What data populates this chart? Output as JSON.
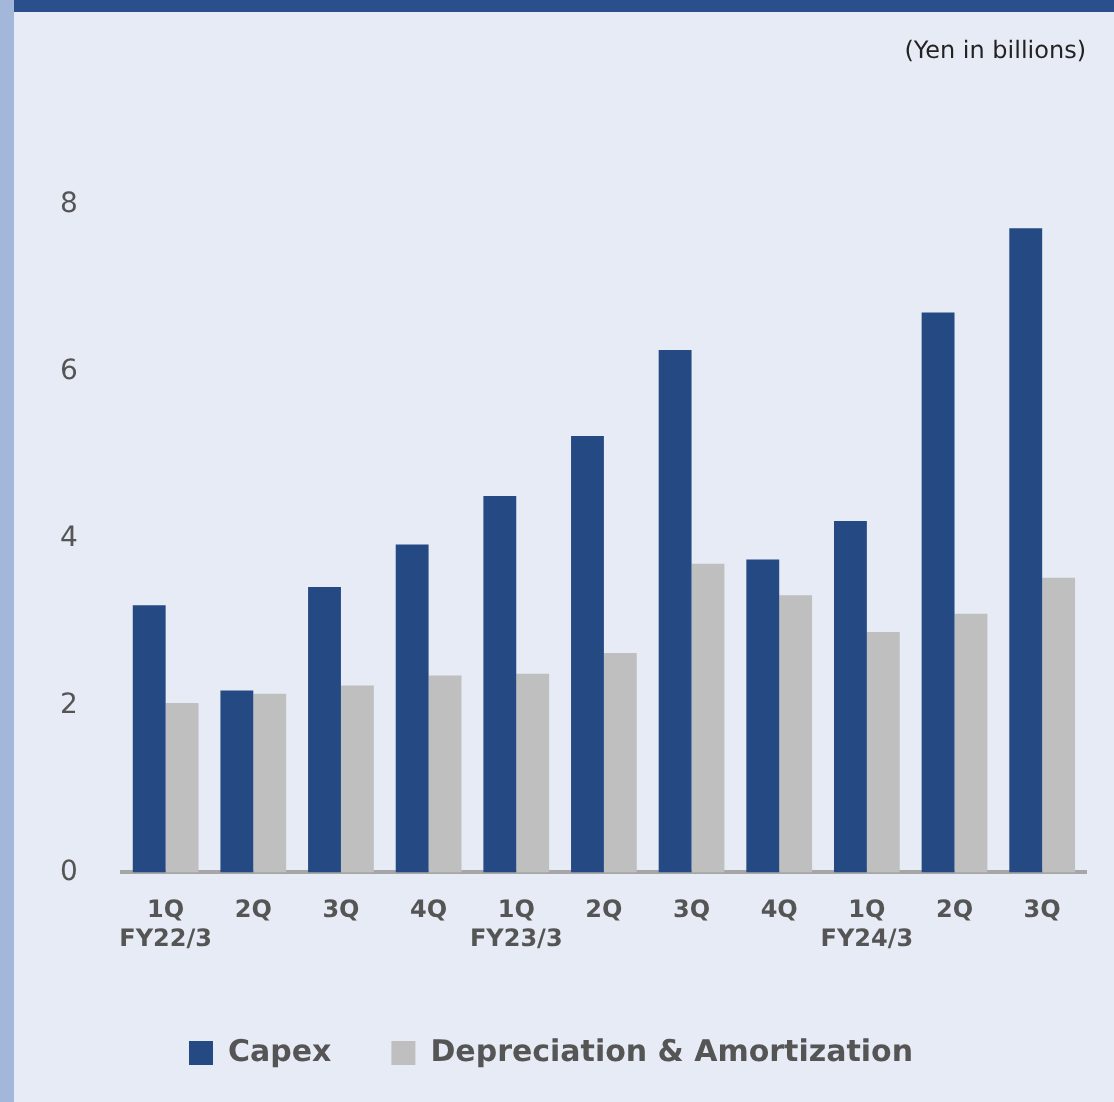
{
  "chart_data": {
    "type": "bar",
    "categories": [
      "1Q\nFY22/3",
      "2Q",
      "3Q",
      "4Q",
      "1Q\nFY23/3",
      "2Q",
      "3Q",
      "4Q",
      "1Q\nFY24/3",
      "2Q",
      "3Q"
    ],
    "series": [
      {
        "name": "Capex",
        "color": "#254a83",
        "values": [
          3.2,
          2.18,
          3.42,
          3.93,
          4.51,
          5.23,
          6.26,
          3.75,
          4.21,
          6.71,
          7.72
        ]
      },
      {
        "name": "Depreciation & Amortization",
        "color": "#bfbfbf",
        "values": [
          2.03,
          2.14,
          2.24,
          2.36,
          2.38,
          2.63,
          3.7,
          3.32,
          2.88,
          3.1,
          3.53
        ]
      }
    ],
    "ylim": [
      0,
      8
    ],
    "yticks": [
      0,
      2,
      4,
      6,
      8
    ],
    "grid": false,
    "legend": "bottom",
    "annotations": [
      "(Yen in billions)"
    ]
  }
}
